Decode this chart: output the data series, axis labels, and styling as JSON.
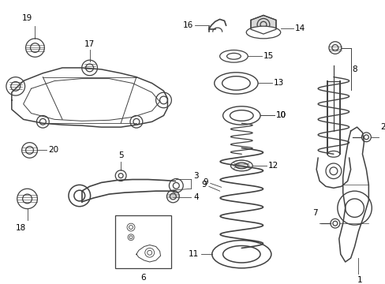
{
  "bg_color": "#ffffff",
  "line_color": "#404040",
  "label_color": "#000000",
  "figsize": [
    4.89,
    3.6
  ],
  "dpi": 100,
  "lw": 0.9,
  "label_fontsize": 7.5
}
